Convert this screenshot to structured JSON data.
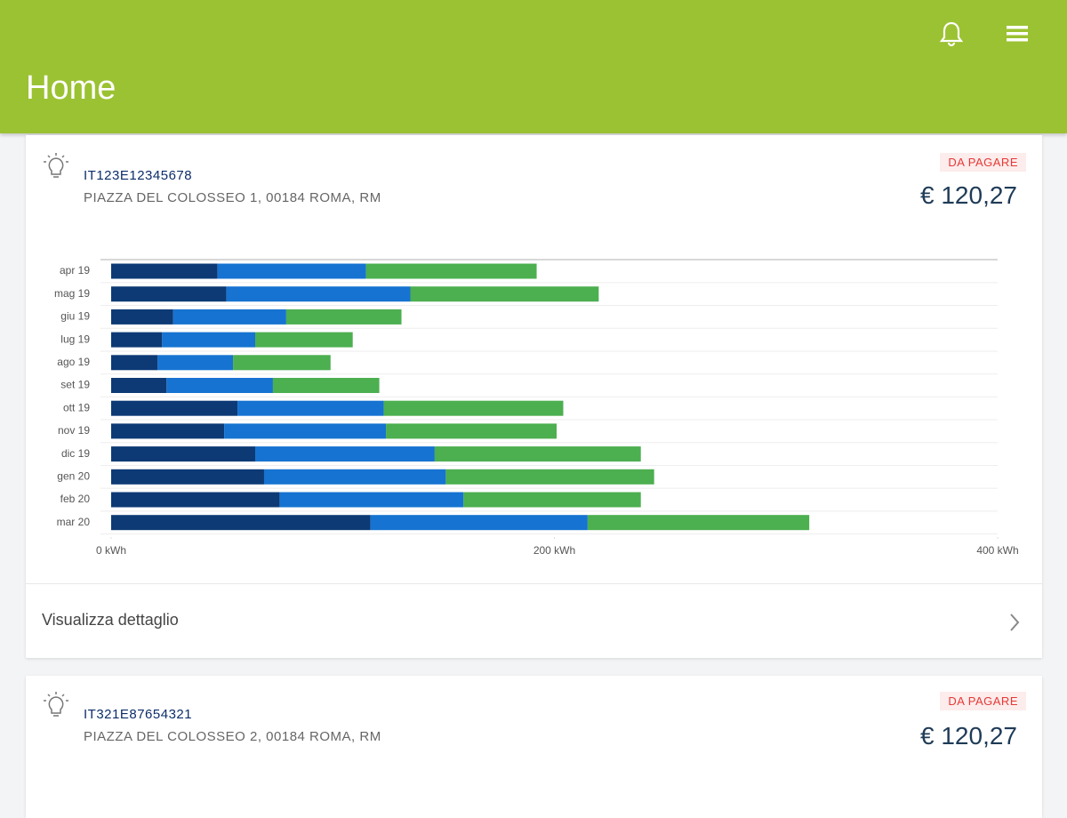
{
  "header": {
    "title": "Home"
  },
  "cards": [
    {
      "pod": "IT123E12345678",
      "address": "PIAZZA DEL COLOSSEO 1, 00184 ROMA, RM",
      "status": "DA PAGARE",
      "amount": "€ 120,27",
      "detail_link": "Visualizza dettaglio"
    },
    {
      "pod": "IT321E87654321",
      "address": "PIAZZA DEL COLOSSEO 2, 00184 ROMA, RM",
      "status": "DA PAGARE",
      "amount": "€ 120,27"
    }
  ],
  "chart_data": {
    "type": "stacked-bar-horizontal",
    "categories": [
      "apr 19",
      "mag 19",
      "giu 19",
      "lug 19",
      "ago 19",
      "set 19",
      "ott 19",
      "nov 19",
      "dic 19",
      "gen 20",
      "feb 20",
      "mar 20"
    ],
    "series": [
      {
        "color": "#0d3a75",
        "values": [
          48,
          52,
          28,
          23,
          21,
          25,
          57,
          51,
          65,
          69,
          76,
          117
        ]
      },
      {
        "color": "#1673d1",
        "values": [
          67,
          83,
          51,
          42,
          34,
          48,
          66,
          73,
          81,
          82,
          83,
          98
        ]
      },
      {
        "color": "#4caf50",
        "values": [
          77,
          85,
          52,
          44,
          44,
          48,
          81,
          77,
          93,
          94,
          80,
          100
        ]
      }
    ],
    "xlim": [
      0,
      400
    ],
    "xticks": [
      {
        "value": 0,
        "label": "0 kWh"
      },
      {
        "value": 200,
        "label": "200 kWh"
      },
      {
        "value": 400,
        "label": "400 kWh"
      }
    ]
  }
}
